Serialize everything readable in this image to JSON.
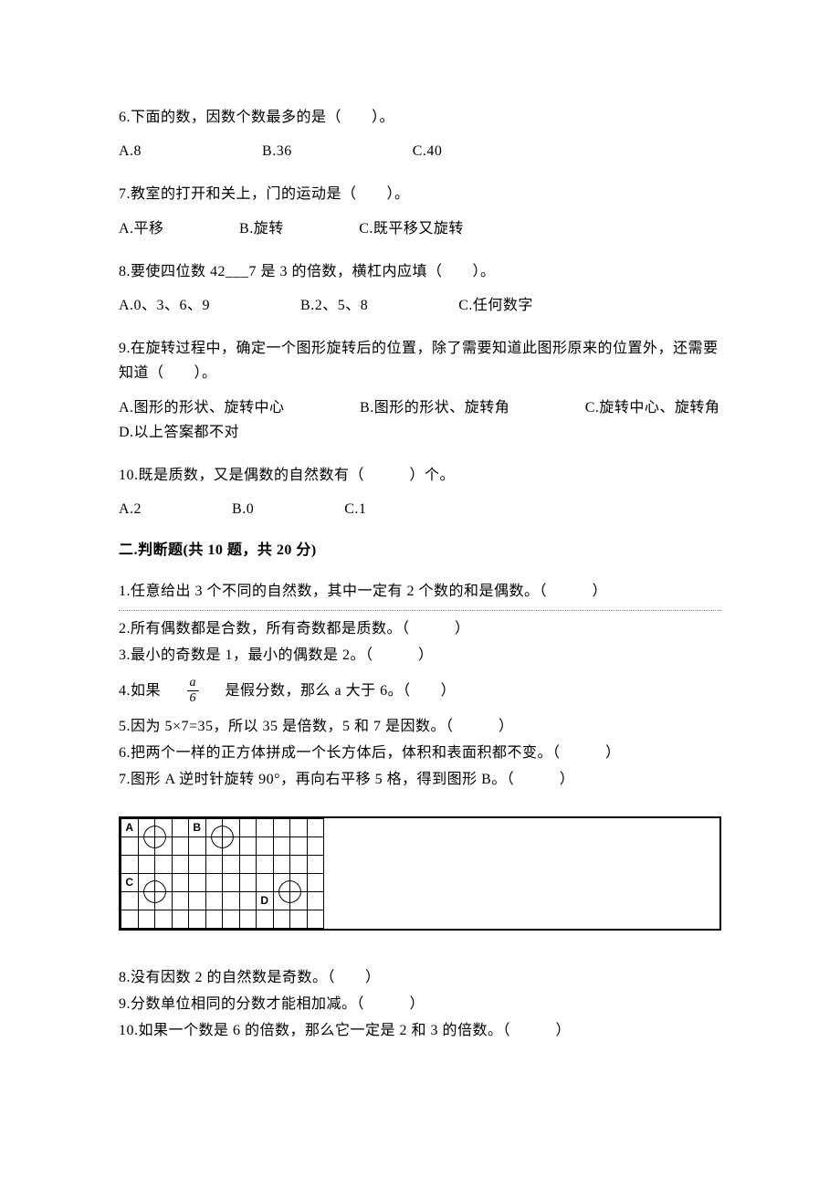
{
  "q6": {
    "stem": "6.下面的数，因数个数最多的是（　　）。",
    "opts": "A.8　　　　　　　　B.36　　　　　　　　C.40"
  },
  "q7": {
    "stem": "7.教室的打开和关上，门的运动是（　　）。",
    "opts": "A.平移　　　　　B.旋转　　　　　C.既平移又旋转"
  },
  "q8": {
    "stem": "8.要使四位数 42___7 是 3 的倍数，横杠内应填（　　）。",
    "opts": "A.0、3、6、9　　　　　　B.2、5、8　　　　　　C.任何数字"
  },
  "q9": {
    "stem": "9.在旋转过程中，确定一个图形旋转后的位置，除了需要知道此图形原来的位置外，还需要知道（　　）。",
    "opts": "A.图形的形状、旋转中心　　　　　B.图形的形状、旋转角　　　　　C.旋转中心、旋转角　　　　　D.以上答案都不对"
  },
  "q10": {
    "stem": "10.既是质数，又是偶数的自然数有（　　　）个。",
    "opts": "A.2　　　　　　B.0　　　　　　C.1"
  },
  "section2": "二.判断题(共 10 题，共 20 分)",
  "j1": "1.任意给出 3 个不同的自然数，其中一定有 2 个数的和是偶数。（　　　）",
  "j2": "2.所有偶数都是合数，所有奇数都是质数。（　　　）",
  "j3": "3.最小的奇数是 1，最小的偶数是 2。（　　　）",
  "j4_pre": "4.如果　",
  "j4_num": "a",
  "j4_den": "6",
  "j4_post": "　是假分数，那么 a 大于 6。（　　）",
  "j5": "5.因为 5×7=35，所以 35 是倍数，5 和 7 是因数。（　　　）",
  "j6": "6.把两个一样的正方体拼成一个长方体后，体积和表面积都不变。（　　　）",
  "j7": "7.图形 A 逆时针旋转 90°，再向右平移 5 格，得到图形 B。（　　　）",
  "j8": "8.没有因数 2 的自然数是奇数。（　　）",
  "j9": "9.分数单位相同的分数才能相加减。（　　　）",
  "j10": "10.如果一个数是 6 的倍数，那么它一定是 2 和 3 的倍数。（　　　）",
  "grid": {
    "rows": 6,
    "cols": 12,
    "labels": {
      "A": [
        0,
        0
      ],
      "B": [
        0,
        4
      ],
      "C": [
        3,
        0
      ],
      "D": [
        4,
        8
      ]
    },
    "shapes": {
      "A": {
        "tl": [
          0,
          1
        ],
        "tr": [
          0,
          2
        ],
        "bl": [
          1,
          1
        ],
        "br": [
          1,
          2
        ]
      },
      "B": {
        "tl": [
          0,
          5
        ],
        "tr": [
          0,
          6
        ],
        "bl": [
          1,
          5
        ],
        "br": [
          1,
          6
        ]
      },
      "C": {
        "tl": [
          3,
          1
        ],
        "tr": [
          3,
          2
        ],
        "bl": [
          4,
          1
        ],
        "br": [
          4,
          2
        ]
      },
      "D": {
        "tl": [
          3,
          9
        ],
        "tr": [
          3,
          10
        ],
        "bl": [
          4,
          9
        ],
        "br": [
          4,
          10
        ]
      }
    }
  }
}
